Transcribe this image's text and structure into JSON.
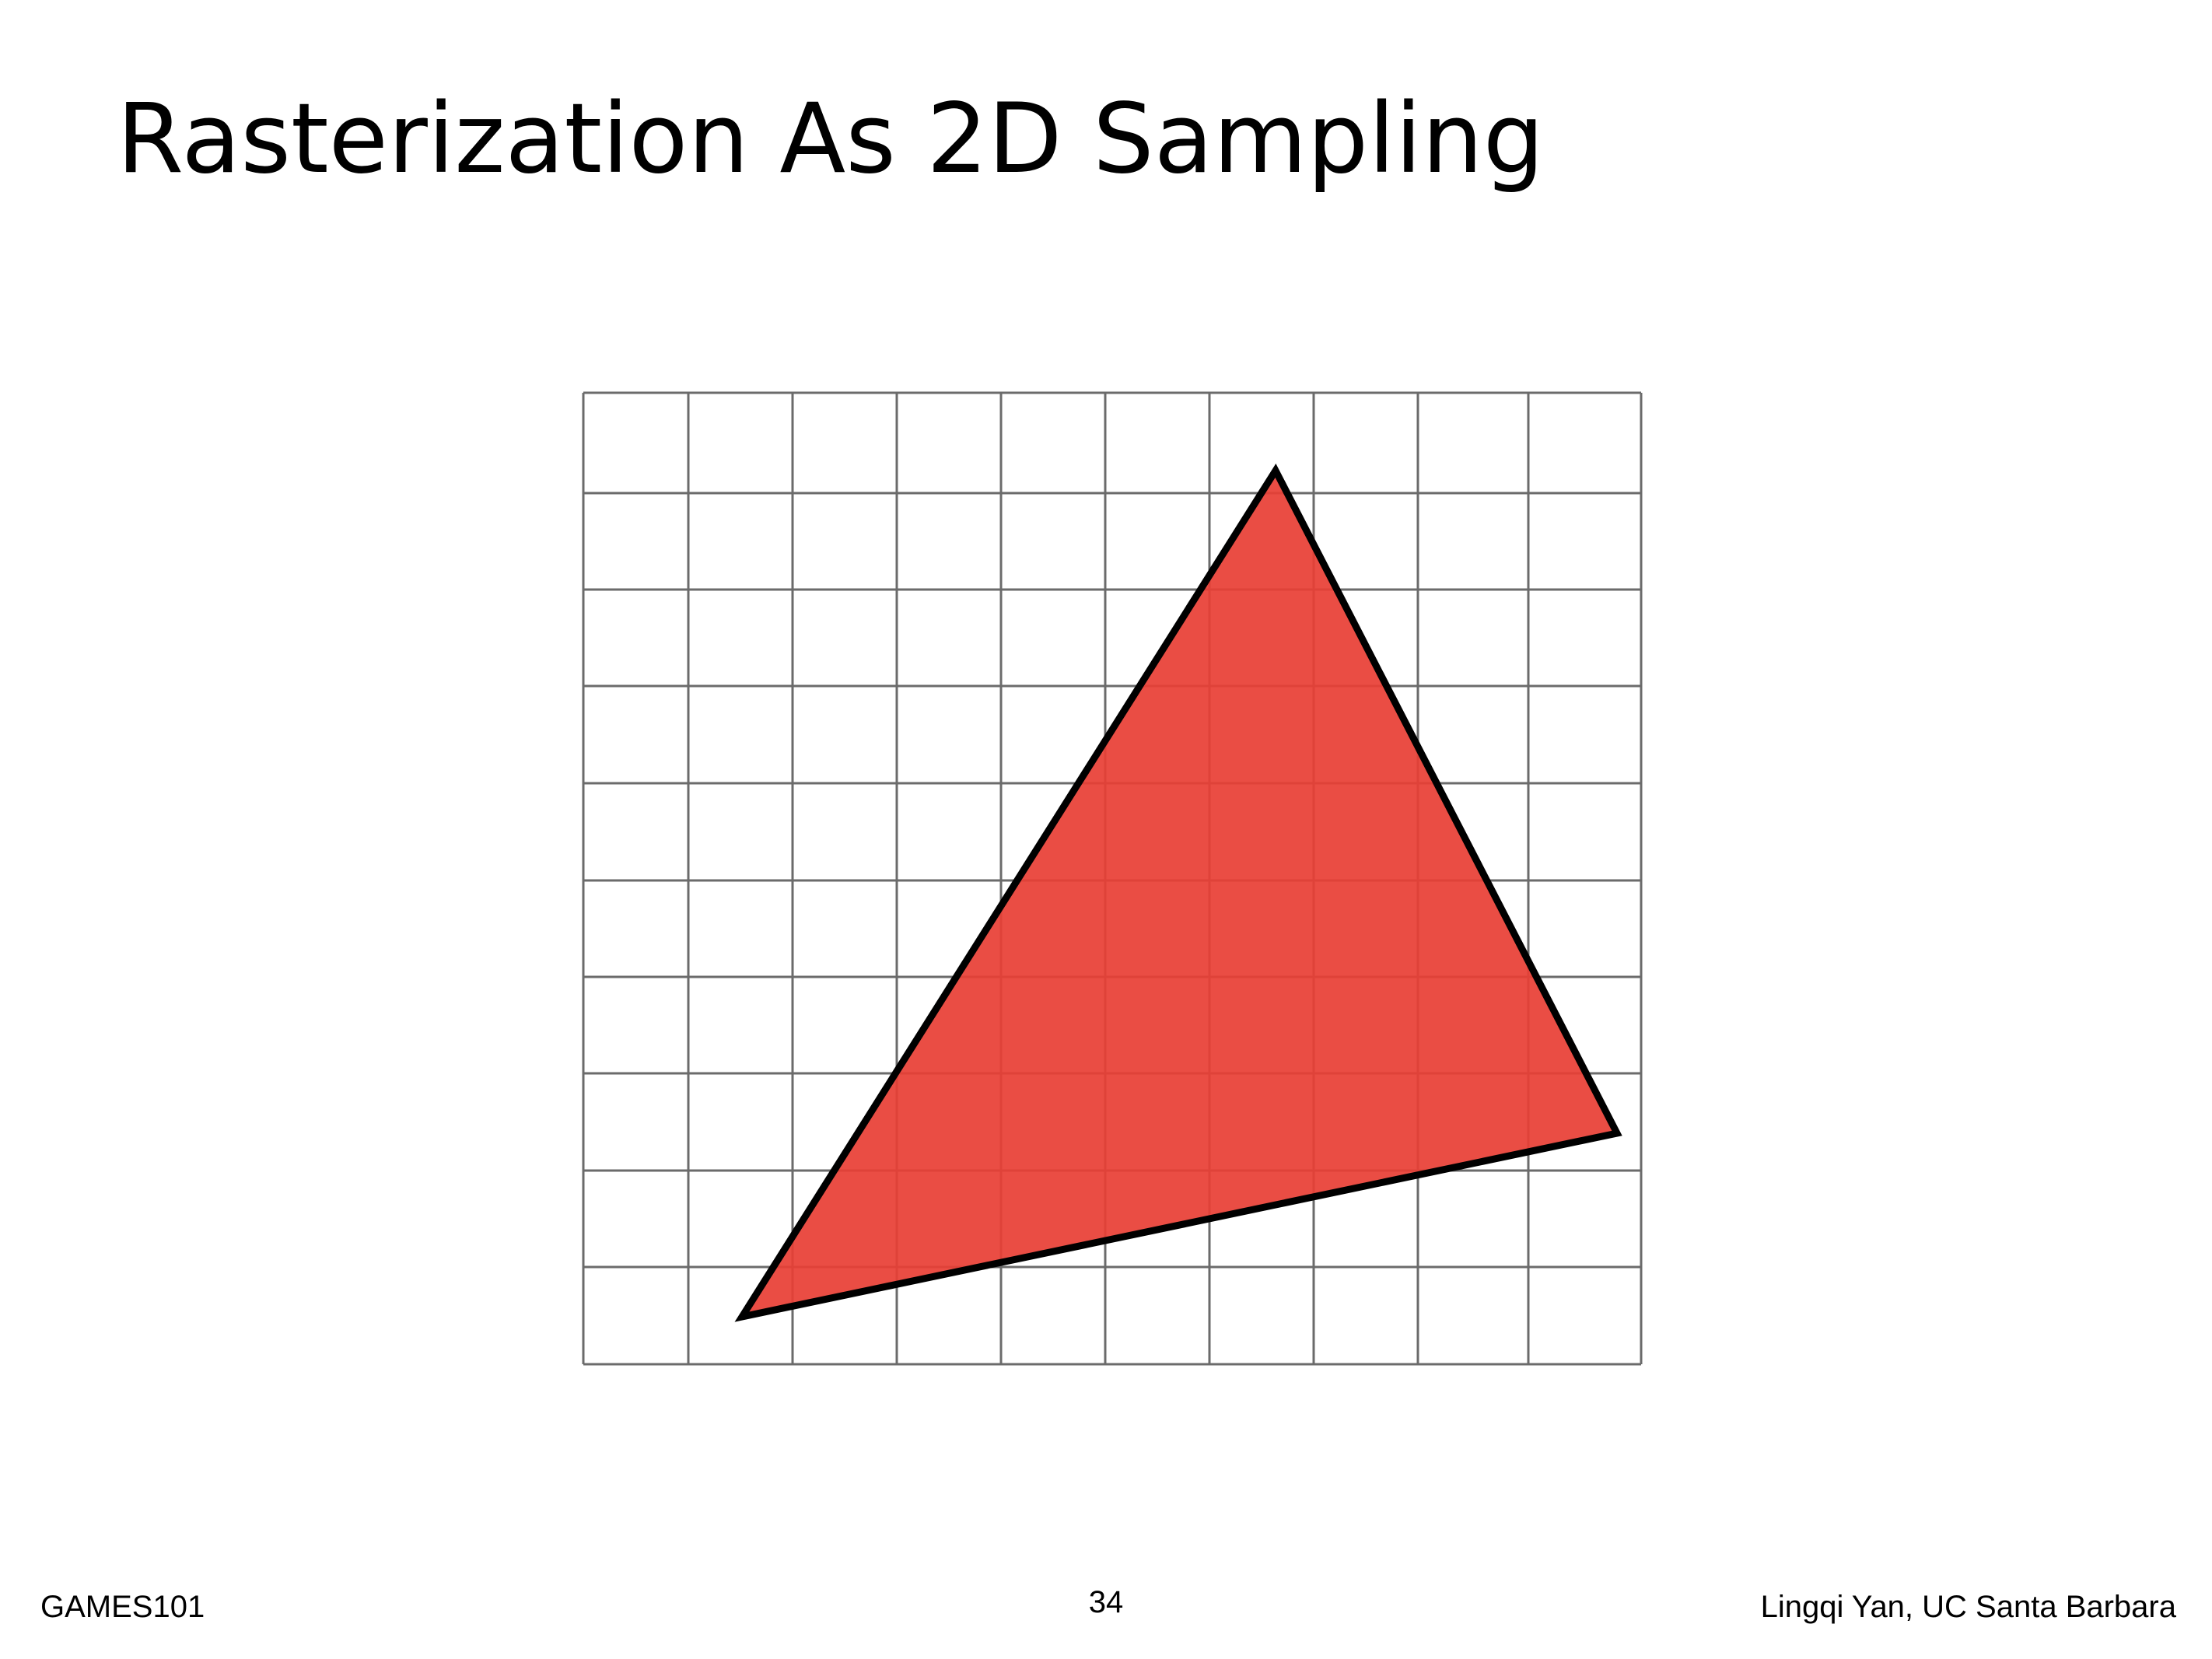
{
  "slide": {
    "title": "Rasterization As 2D Sampling"
  },
  "diagram": {
    "grid": {
      "columns": 10,
      "rows": 10,
      "line_color": "#6b6b6b"
    },
    "triangle": {
      "fill_color": "#e83f36",
      "stroke_color": "#000000"
    }
  },
  "footer": {
    "course": "GAMES101",
    "page_number": "34",
    "author": "Lingqi Yan, UC Santa Barbara"
  }
}
